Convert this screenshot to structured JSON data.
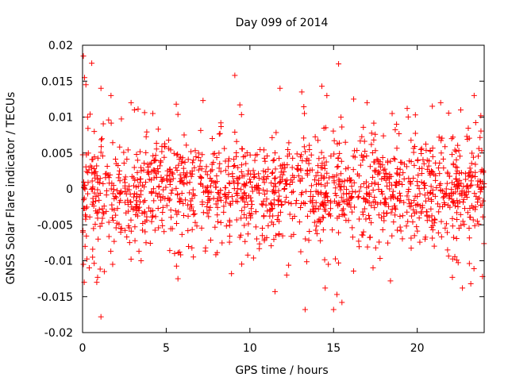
{
  "chart_data": {
    "type": "scatter",
    "title": "Day 099 of 2014",
    "xlabel": "GPS time / hours",
    "ylabel": "GNSS Solar Flare indicator / TECUs",
    "xlim": [
      0,
      24
    ],
    "ylim": [
      -0.02,
      0.02
    ],
    "xticks": [
      0,
      5,
      10,
      15,
      20
    ],
    "xtick_labels": [
      "0",
      "5",
      "10",
      "15",
      "20"
    ],
    "yticks": [
      0.02,
      0.015,
      0.01,
      0.005,
      0,
      -0.005,
      -0.01,
      -0.015,
      -0.02
    ],
    "ytick_labels": [
      "0.02",
      "0.015",
      "0.01",
      "0.005",
      "0",
      "-0.005",
      "-0.01",
      "-0.015",
      "-0.02"
    ],
    "marker": "plus",
    "marker_color": "#ff0000",
    "grid": false,
    "series": [
      {
        "name": "GNSS Solar Flare indicator",
        "x": [
          0.05,
          0.1,
          0.12,
          0.2,
          0.3,
          0.4,
          0.55,
          0.7,
          0.85,
          1.1,
          1.7,
          2.9,
          3.1,
          4.2,
          5.6,
          7.2,
          9.1,
          9.4,
          11.8,
          13.1,
          14.3,
          14.6,
          15.3,
          16.2,
          17.0,
          18.5,
          19.4,
          20.9,
          21.4,
          22.6,
          23.4,
          23.8,
          0.05,
          0.15,
          0.6,
          0.9,
          1.1,
          1.3,
          1.8,
          3.5,
          5.7,
          8.9,
          11.5,
          12.2,
          13.3,
          14.5,
          15.0,
          15.2,
          15.5,
          18.4,
          22.1,
          22.7,
          23.2,
          23.9
        ],
        "y": [
          0.0185,
          -0.013,
          0.0155,
          0.0145,
          0.01,
          -0.011,
          0.0175,
          0.008,
          -0.013,
          0.014,
          0.013,
          0.012,
          0.011,
          0.0105,
          0.0118,
          0.0123,
          0.0158,
          0.0117,
          0.014,
          0.0135,
          0.0143,
          0.013,
          0.0174,
          0.0125,
          0.012,
          0.0105,
          0.0112,
          0.0115,
          0.012,
          0.011,
          0.013,
          0.0102,
          -0.0105,
          -0.008,
          -0.0095,
          -0.0123,
          -0.0178,
          -0.0115,
          -0.0105,
          -0.01,
          -0.0125,
          -0.0118,
          -0.0143,
          -0.012,
          -0.0168,
          -0.0138,
          -0.0168,
          -0.0147,
          -0.0158,
          -0.0128,
          -0.0123,
          -0.0138,
          -0.0132,
          -0.0122
        ],
        "bulk": {
          "x_range": [
            0,
            24
          ],
          "count": 1500,
          "typical_range": [
            -0.01,
            0.01
          ],
          "core_range": [
            -0.005,
            0.005
          ],
          "center": 0
        }
      }
    ]
  }
}
